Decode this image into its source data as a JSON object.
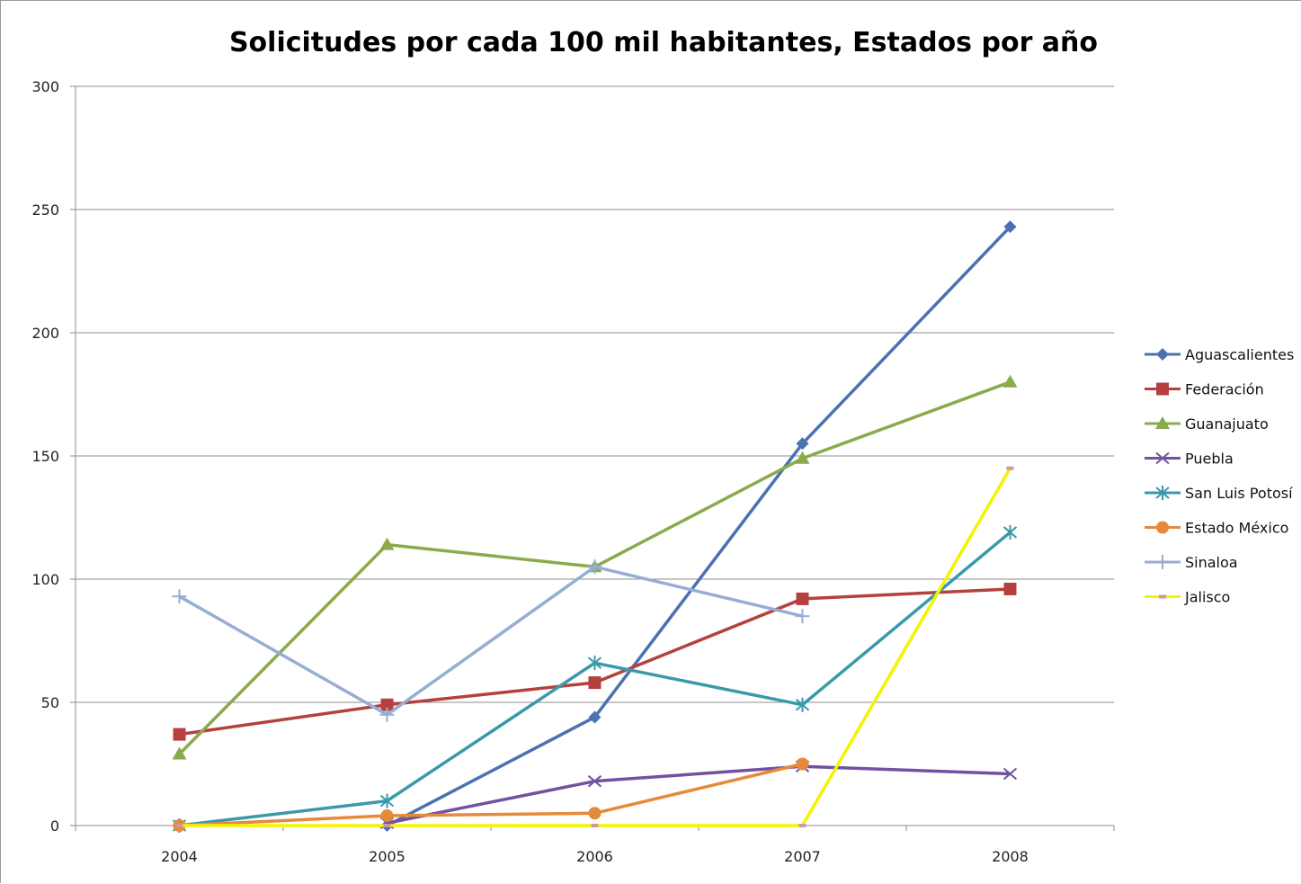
{
  "chart_data": {
    "type": "line",
    "title": "Solicitudes por cada 100 mil habitantes, Estados por año",
    "xlabel": "",
    "ylabel": "",
    "categories": [
      "2004",
      "2005",
      "2006",
      "2007",
      "2008"
    ],
    "ylim": [
      0,
      300
    ],
    "yticks": [
      0,
      50,
      100,
      150,
      200,
      250,
      300
    ],
    "grid": true,
    "legend_position": "right",
    "series": [
      {
        "name": "Aguascalientes",
        "color": "#4a72b0",
        "marker": "diamond",
        "values": [
          null,
          0,
          44,
          155,
          243
        ]
      },
      {
        "name": "Federación",
        "color": "#b5413f",
        "marker": "square",
        "values": [
          37,
          49,
          58,
          92,
          96
        ]
      },
      {
        "name": "Guanajuato",
        "color": "#8aaa4b",
        "marker": "triangle",
        "values": [
          29,
          114,
          105,
          149,
          180
        ]
      },
      {
        "name": "Puebla",
        "color": "#7252a0",
        "marker": "x",
        "values": [
          null,
          1,
          18,
          24,
          21
        ]
      },
      {
        "name": "San Luis Potosí",
        "color": "#3a99ab",
        "marker": "star",
        "values": [
          0,
          10,
          66,
          49,
          119
        ]
      },
      {
        "name": "Estado México",
        "color": "#e58a3a",
        "marker": "circle",
        "values": [
          0,
          4,
          5,
          25,
          null
        ]
      },
      {
        "name": "Sinaloa",
        "color": "#97aed4",
        "marker": "plus",
        "values": [
          93,
          45,
          105,
          85,
          null
        ]
      },
      {
        "name": "Jalisco",
        "color": "#f4f400",
        "marker": "dash",
        "values": [
          0,
          0,
          0,
          0,
          145
        ]
      }
    ]
  }
}
